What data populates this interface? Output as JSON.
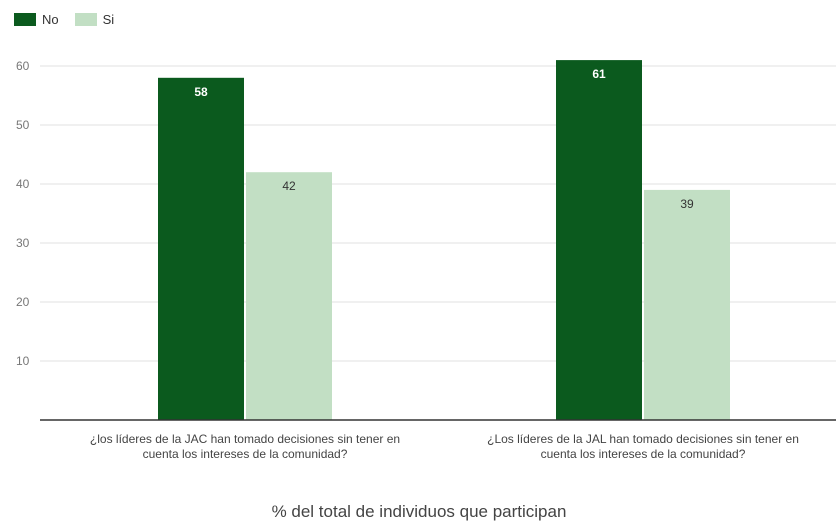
{
  "chart_data": {
    "type": "bar",
    "categories": [
      "¿los líderes de la JAC han tomado decisiones sin tener en cuenta los intereses de la comunidad?",
      "¿Los líderes de la JAL han tomado decisiones sin tener en cuenta los intereses de la comunidad?"
    ],
    "series": [
      {
        "name": "No",
        "values": [
          58,
          61
        ],
        "color": "#0b5a1e"
      },
      {
        "name": "Si",
        "values": [
          42,
          39
        ],
        "color": "#c2dfc4"
      }
    ],
    "xlabel": "% del total de individuos que participan",
    "ylabel": "",
    "ylim": [
      0,
      60
    ],
    "yticks": [
      10,
      20,
      30,
      40,
      50,
      60
    ],
    "grid": true,
    "legend_position": "top-left"
  }
}
